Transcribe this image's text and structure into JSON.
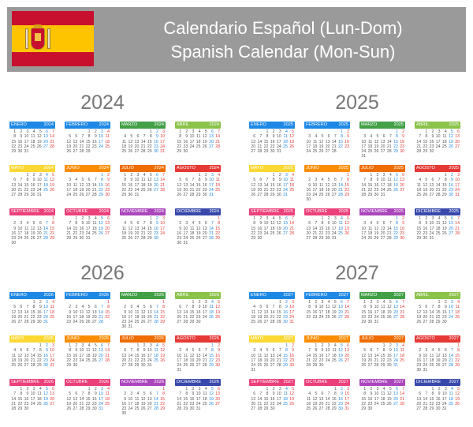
{
  "header": {
    "title_es": "Calendario Español (Lun-Dom)",
    "title_en": "Spanish Calendar (Mon-Sun)",
    "background": "#9a9a9a",
    "flag": {
      "red": "#c8102e",
      "yellow": "#ffc400",
      "icon": "spain-flag-icon"
    }
  },
  "month_names": [
    "ENERO",
    "FEBRERO",
    "MARZO",
    "ABRIL",
    "MAYO",
    "JUNIO",
    "JULIO",
    "AGOSTO",
    "SEPTIEMBRE",
    "OCTUBRE",
    "NOVIEMBRE",
    "DICIEMBRE"
  ],
  "month_colors": [
    "#1e88e5",
    "#1e88e5",
    "#43a047",
    "#8bc34a",
    "#fdd835",
    "#fb8c00",
    "#ef6c00",
    "#e53935",
    "#ec407a",
    "#ec407a",
    "#ab47bc",
    "#3949ab"
  ],
  "day_colors": {
    "weekday": "#555555",
    "saturday": "#1e88e5",
    "sunday": "#e53935"
  },
  "years": [
    "2024",
    "2025",
    "2026",
    "2027"
  ]
}
